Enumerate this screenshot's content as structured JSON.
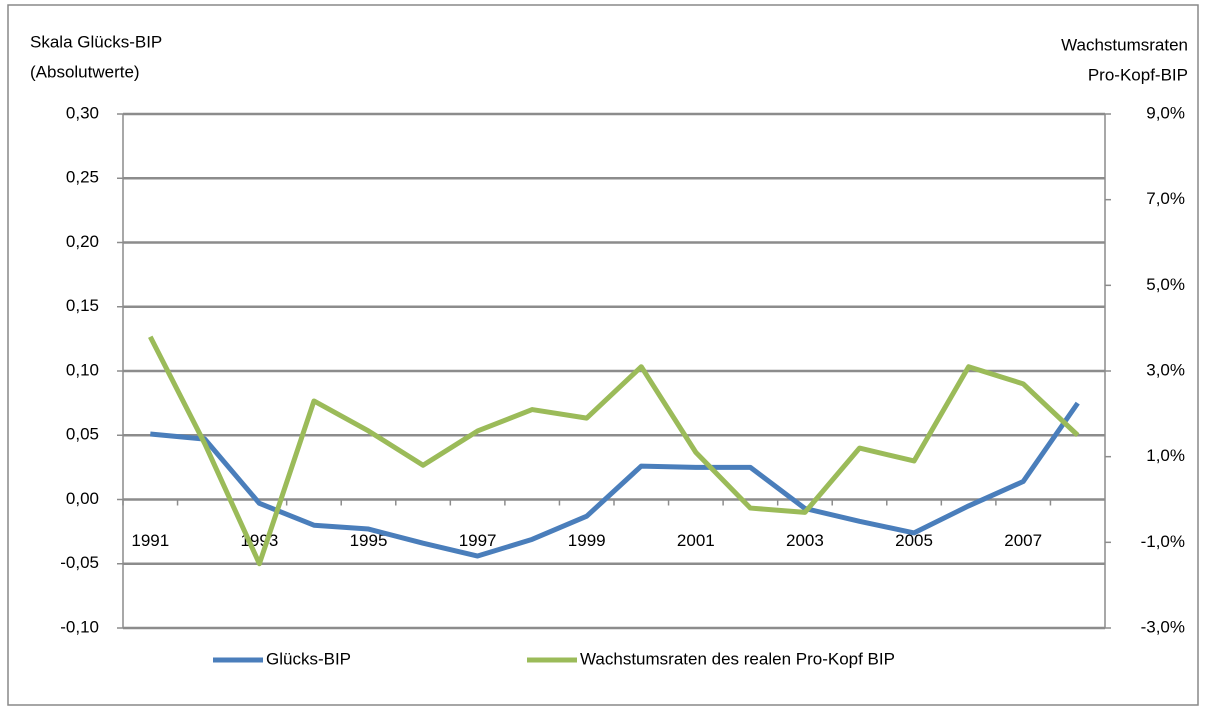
{
  "chart_data": {
    "type": "line",
    "y_label": [
      "Skala Glücks-BIP",
      "(Absolutwerte)"
    ],
    "y2_label": [
      "Wachstumsraten",
      "Pro-Kopf-BIP"
    ],
    "categories": [
      "1991",
      null,
      "1993",
      null,
      "1995",
      null,
      "1997",
      null,
      "1999",
      null,
      "2001",
      null,
      "2003",
      null,
      "2005",
      null,
      "2007",
      null
    ],
    "series": [
      {
        "name": "Glücks-BIP",
        "color": "#4a7ebb",
        "values": [
          0.051,
          0.047,
          -0.003,
          -0.02,
          -0.023,
          -0.034,
          -0.044,
          -0.031,
          -0.013,
          0.026,
          0.025,
          0.025,
          -0.007,
          -0.017,
          -0.026,
          -0.005,
          0.014,
          0.075
        ]
      },
      {
        "name": "Wachstumsraten des realen Pro-Kopf BIP",
        "color": "#9bbb59",
        "axis": "y2",
        "values": [
          3.8,
          1.3,
          -1.5,
          2.3,
          1.6,
          0.8,
          1.6,
          2.1,
          1.9,
          3.1,
          1.1,
          -0.2,
          -0.3,
          1.2,
          0.9,
          3.1,
          2.7,
          1.5
        ]
      }
    ],
    "ylim": [
      -0.1,
      0.3
    ],
    "yticks": [
      {
        "value": -0.1,
        "label": "-0,10"
      },
      {
        "value": -0.05,
        "label": "-0,05"
      },
      {
        "value": 0,
        "label": "0,00"
      },
      {
        "value": 0.05,
        "label": "0,05"
      },
      {
        "value": 0.1,
        "label": "0,10"
      },
      {
        "value": 0.15,
        "label": "0,15"
      },
      {
        "value": 0.2,
        "label": "0,20"
      },
      {
        "value": 0.25,
        "label": "0,25"
      },
      {
        "value": 0.3,
        "label": "0,30"
      }
    ],
    "y2lim": [
      -3,
      9
    ],
    "y2ticks": [
      {
        "value": -3,
        "label": "-3,0%"
      },
      {
        "value": -1,
        "label": "-1,0%"
      },
      {
        "value": 1,
        "label": "1,0%"
      },
      {
        "value": 3,
        "label": "3,0%"
      },
      {
        "value": 5,
        "label": "5,0%"
      },
      {
        "value": 7,
        "label": "7,0%"
      },
      {
        "value": 9,
        "label": "9,0%"
      }
    ],
    "grid": true,
    "legend": "bottom"
  }
}
